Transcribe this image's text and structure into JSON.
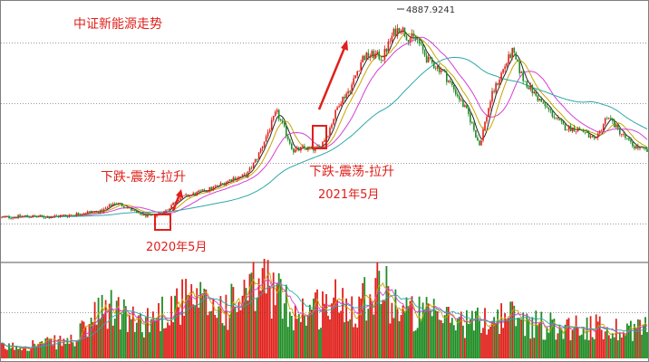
{
  "chart_data": {
    "type": "candlestick",
    "title": "中证新能源走势",
    "price_axis": {
      "min": 1000,
      "max": 5200,
      "gridlines": [
        1600,
        2600,
        3600,
        4600
      ]
    },
    "series": {
      "close": {
        "key": [
          [
            0,
            1700
          ],
          [
            25,
            1720
          ],
          [
            50,
            1710
          ],
          [
            75,
            1740
          ],
          [
            95,
            1790
          ],
          [
            110,
            1800
          ],
          [
            125,
            1950
          ],
          [
            137,
            1880
          ],
          [
            150,
            1760
          ],
          [
            165,
            1720
          ],
          [
            180,
            1800
          ],
          [
            195,
            2020
          ],
          [
            215,
            2100
          ],
          [
            235,
            2200
          ],
          [
            255,
            2350
          ],
          [
            270,
            2400
          ],
          [
            282,
            2700
          ],
          [
            296,
            3200
          ],
          [
            303,
            3450
          ],
          [
            312,
            3150
          ],
          [
            322,
            2800
          ],
          [
            333,
            2850
          ],
          [
            343,
            2830
          ],
          [
            350,
            2850
          ],
          [
            360,
            3100
          ],
          [
            372,
            3600
          ],
          [
            385,
            3850
          ],
          [
            398,
            4350
          ],
          [
            410,
            4400
          ],
          [
            420,
            4350
          ],
          [
            432,
            4750
          ],
          [
            440,
            4860
          ],
          [
            447,
            4700
          ],
          [
            458,
            4650
          ],
          [
            470,
            4300
          ],
          [
            485,
            4150
          ],
          [
            500,
            3800
          ],
          [
            515,
            3400
          ],
          [
            527,
            2900
          ],
          [
            540,
            3700
          ],
          [
            553,
            4150
          ],
          [
            563,
            4450
          ],
          [
            575,
            4000
          ],
          [
            590,
            3700
          ],
          [
            605,
            3450
          ],
          [
            620,
            3200
          ],
          [
            640,
            3150
          ],
          [
            655,
            2950
          ],
          [
            668,
            3400
          ],
          [
            680,
            3150
          ],
          [
            695,
            2900
          ],
          [
            712,
            2800
          ]
        ]
      },
      "volume_points": [
        [
          0,
          3
        ],
        [
          40,
          4
        ],
        [
          80,
          5
        ],
        [
          105,
          12
        ],
        [
          125,
          14
        ],
        [
          145,
          10
        ],
        [
          165,
          11
        ],
        [
          195,
          16
        ],
        [
          220,
          15
        ],
        [
          250,
          14
        ],
        [
          275,
          18
        ],
        [
          292,
          22
        ],
        [
          305,
          17
        ],
        [
          322,
          13
        ],
        [
          345,
          14
        ],
        [
          370,
          16
        ],
        [
          390,
          15
        ],
        [
          415,
          22
        ],
        [
          425,
          18
        ],
        [
          445,
          13
        ],
        [
          470,
          12
        ],
        [
          490,
          11
        ],
        [
          520,
          10
        ],
        [
          540,
          11
        ],
        [
          560,
          12
        ],
        [
          580,
          10
        ],
        [
          610,
          9
        ],
        [
          640,
          9
        ],
        [
          670,
          8
        ],
        [
          712,
          9
        ]
      ]
    },
    "moving_averages": [
      {
        "period": 5,
        "color": "#222222"
      },
      {
        "period": 10,
        "color": "#c8a400"
      },
      {
        "period": 20,
        "color": "#d43fd4"
      },
      {
        "period": 60,
        "color": "#2fa8a8"
      }
    ],
    "volume_moving_averages": [
      {
        "period": 5,
        "color": "#c8a400"
      },
      {
        "period": 10,
        "color": "#d43fd4"
      },
      {
        "period": 20,
        "color": "#2fa8a8"
      }
    ],
    "max_label": "4887.9241",
    "annotations": [
      {
        "text": "下跌-震荡-拉升",
        "index": 0
      },
      {
        "text": "2020年5月",
        "index": 0
      },
      {
        "text": "下跌-震荡-拉升",
        "index": 1
      },
      {
        "text": "2021年5月",
        "index": 1
      }
    ],
    "colors": {
      "up": "#e0201b",
      "down": "#1f8c24",
      "annotation": "#e0201b",
      "grid": "#9a9a9a"
    }
  }
}
